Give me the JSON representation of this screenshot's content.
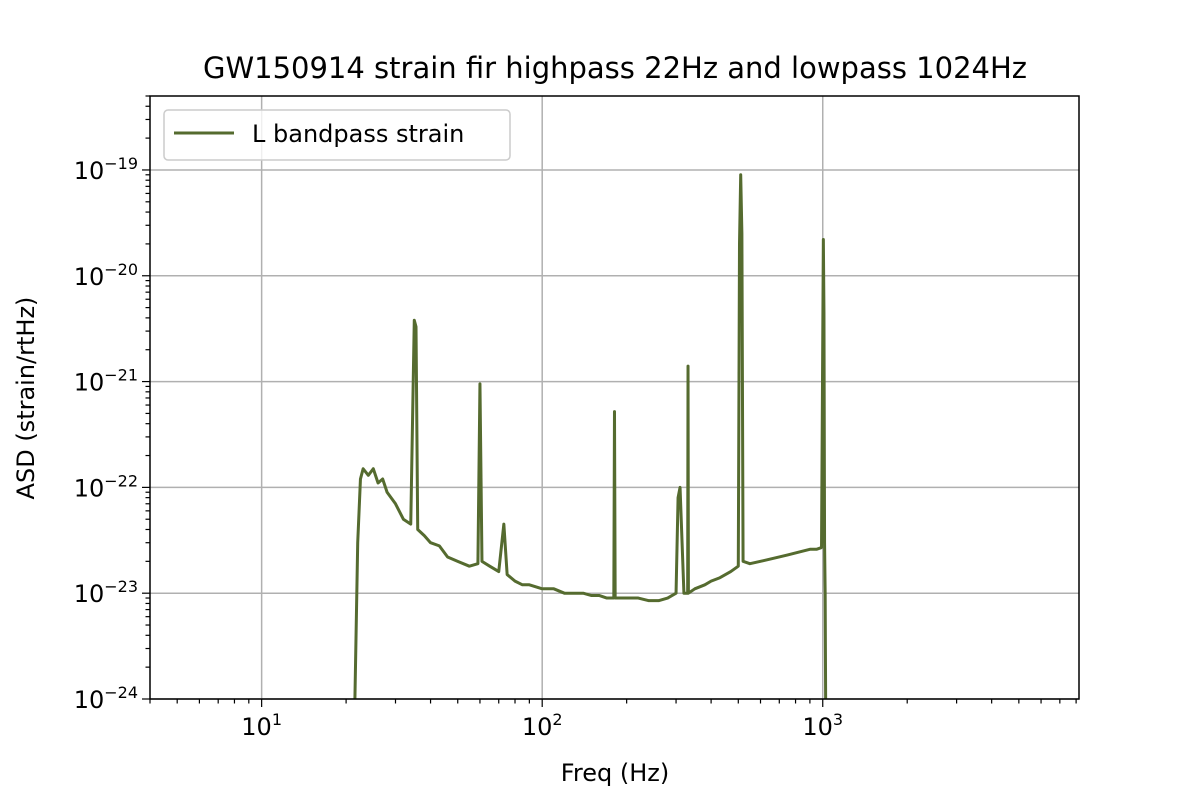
{
  "chart_data": {
    "type": "line",
    "title": "GW150914 strain fir highpass 22Hz and lowpass 1024Hz",
    "xlabel": "Freq (Hz)",
    "ylabel": "ASD (strain/rtHz)",
    "xscale": "log",
    "yscale": "log",
    "xlim": [
      4,
      8192
    ],
    "ylim": [
      1e-24,
      5e-19
    ],
    "grid": true,
    "legend_position": "top-left",
    "x_tick_labels": [
      {
        "value": 10,
        "base": "10",
        "exp": "1"
      },
      {
        "value": 100,
        "base": "10",
        "exp": "2"
      },
      {
        "value": 1000,
        "base": "10",
        "exp": "3"
      }
    ],
    "y_tick_labels": [
      {
        "value": 1e-24,
        "base": "10",
        "exp": "−24"
      },
      {
        "value": 1e-23,
        "base": "10",
        "exp": "−23"
      },
      {
        "value": 1e-22,
        "base": "10",
        "exp": "−22"
      },
      {
        "value": 1e-21,
        "base": "10",
        "exp": "−21"
      },
      {
        "value": 1e-20,
        "base": "10",
        "exp": "−20"
      },
      {
        "value": 1e-19,
        "base": "10",
        "exp": "−19"
      }
    ],
    "series": [
      {
        "name": "L bandpass strain",
        "color": "#556b2f",
        "x": [
          21.5,
          22,
          22.5,
          23,
          24,
          25,
          26,
          27,
          28,
          30,
          32,
          34,
          35,
          35.5,
          36,
          38,
          40,
          43,
          46,
          50,
          55,
          59,
          60,
          61,
          65,
          70,
          73,
          75,
          80,
          85,
          90,
          100,
          110,
          120,
          130,
          140,
          150,
          160,
          170,
          180,
          181,
          182,
          200,
          210,
          220,
          240,
          260,
          280,
          300,
          305,
          310,
          320,
          330,
          331,
          332,
          350,
          380,
          400,
          430,
          470,
          500,
          505,
          510,
          515,
          520,
          550,
          600,
          650,
          700,
          750,
          800,
          850,
          900,
          950,
          990,
          1000,
          1005,
          1010,
          1015,
          1020,
          1022,
          1024
        ],
        "y": [
          1e-24,
          3e-23,
          1.2e-22,
          1.5e-22,
          1.3e-22,
          1.5e-22,
          1.1e-22,
          1.2e-22,
          9e-23,
          7e-23,
          5e-23,
          4.5e-23,
          3.8e-21,
          3.3e-21,
          4e-23,
          3.5e-23,
          3e-23,
          2.8e-23,
          2.2e-23,
          2e-23,
          1.8e-23,
          1.9e-23,
          9.5e-22,
          2e-23,
          1.8e-23,
          1.6e-23,
          4.5e-23,
          1.5e-23,
          1.3e-23,
          1.2e-23,
          1.2e-23,
          1.1e-23,
          1.1e-23,
          1e-23,
          1e-23,
          1e-23,
          9.5e-24,
          9.5e-24,
          9e-24,
          9e-24,
          5.2e-22,
          9e-24,
          9e-24,
          9e-24,
          9e-24,
          8.5e-24,
          8.5e-24,
          9e-24,
          1e-23,
          8e-23,
          1e-22,
          1e-23,
          1e-23,
          1.4e-21,
          1e-23,
          1.1e-23,
          1.2e-23,
          1.3e-23,
          1.4e-23,
          1.6e-23,
          1.8e-23,
          2e-20,
          9e-20,
          2.5e-20,
          2e-23,
          1.9e-23,
          2e-23,
          2.1e-23,
          2.2e-23,
          2.3e-23,
          2.4e-23,
          2.5e-23,
          2.6e-23,
          2.6e-23,
          2.7e-23,
          2.5e-21,
          2.2e-20,
          4.5e-21,
          3e-23,
          1e-23,
          3e-24,
          1e-24
        ]
      }
    ]
  }
}
